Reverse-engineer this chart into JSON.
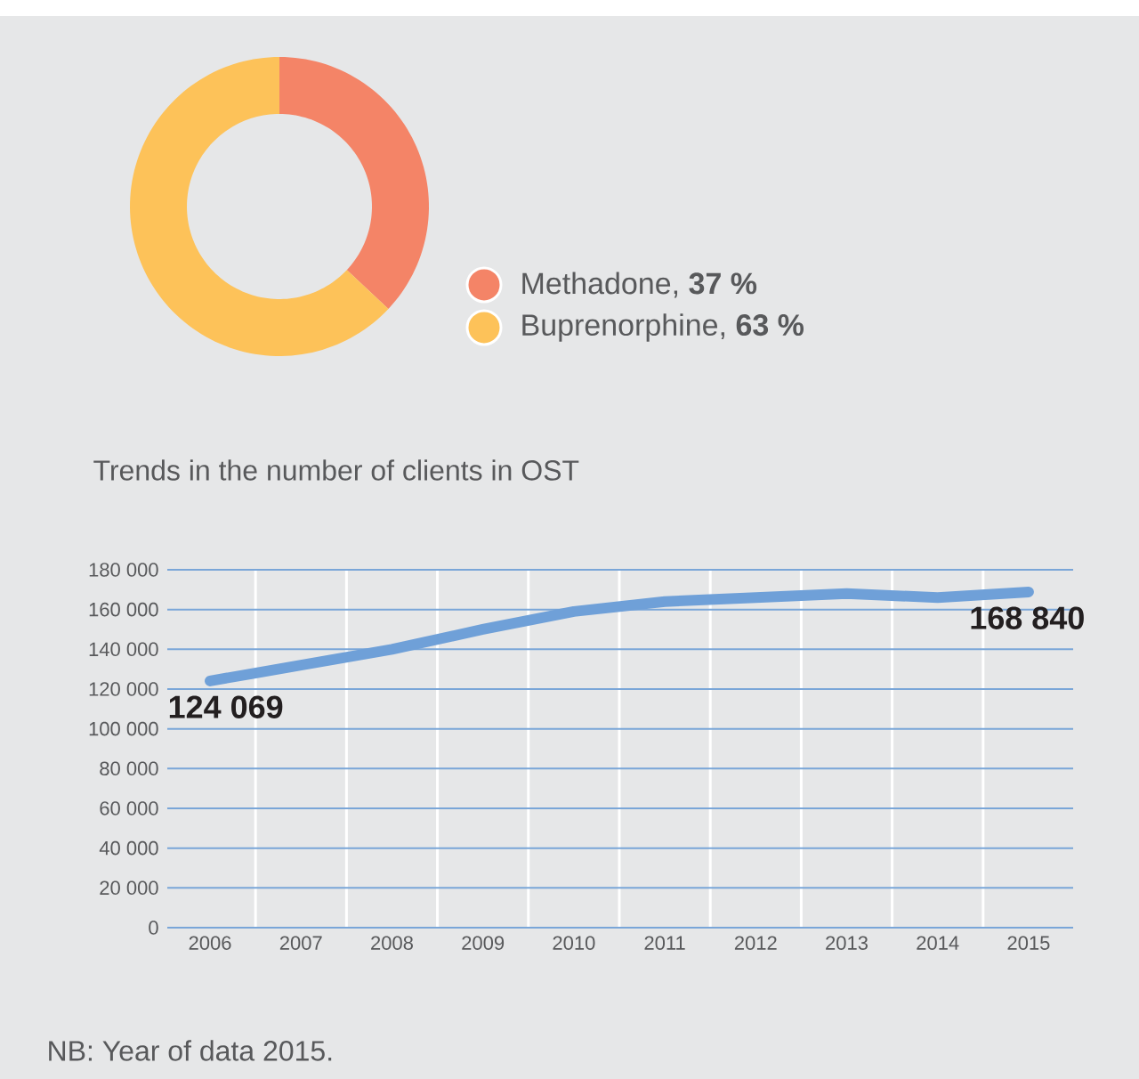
{
  "chart_data": [
    {
      "type": "donut",
      "categories": [
        "Methadone, **37 %**",
        "Buprenorphine, **63 %**"
      ],
      "values": [
        37,
        63
      ],
      "colors": [
        "#f48467",
        "#fdc259"
      ],
      "legend": "right"
    },
    {
      "type": "line",
      "title": "Trends in the number of clients in OST",
      "categories": [
        "2006",
        "2007",
        "2008",
        "2009",
        "2010",
        "2011",
        "2012",
        "2013",
        "2014",
        "2015"
      ],
      "series": [
        {
          "color": "#6fa0d8",
          "values": [
            124069,
            132000,
            140000,
            150000,
            159000,
            164000,
            166000,
            168000,
            166000,
            168840
          ],
          "value_labels": [
            "124 069",
            null,
            null,
            null,
            null,
            null,
            null,
            null,
            null,
            "168 840"
          ]
        }
      ],
      "ylim": [
        0,
        180000
      ],
      "yticks": [
        {
          "value": 0,
          "label": "0"
        },
        {
          "value": 20000,
          "label": "20 000"
        },
        {
          "value": 40000,
          "label": "40 000"
        },
        {
          "value": 60000,
          "label": "60 000"
        },
        {
          "value": 80000,
          "label": "80 000"
        },
        {
          "value": 100000,
          "label": "100 000"
        },
        {
          "value": 120000,
          "label": "120 000"
        },
        {
          "value": 140000,
          "label": "140 000"
        },
        {
          "value": 160000,
          "label": "160 000"
        },
        {
          "value": 180000,
          "label": "180 000"
        }
      ],
      "grid": "y",
      "marker": "none",
      "line_style": "solid",
      "annotations": [
        "NB: Year of data 2015."
      ]
    }
  ]
}
